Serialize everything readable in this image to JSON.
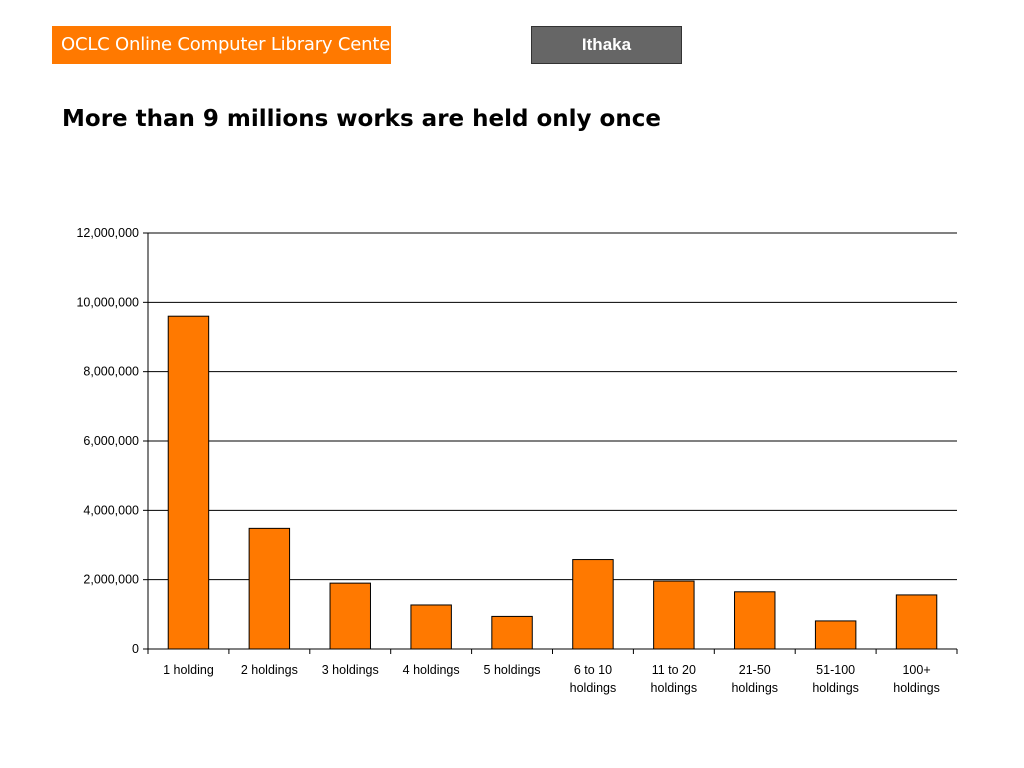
{
  "header": {
    "logo_text": "OCLC Online Computer Library Center",
    "badge_label": "Ithaka"
  },
  "slide": {
    "title": "More than 9 millions works are held only once"
  },
  "colors": {
    "brand_orange": "#FF7900",
    "badge_gray": "#666666",
    "bar_fill": "#FF7900",
    "bar_stroke": "#000000"
  },
  "chart_data": {
    "type": "bar",
    "title": "",
    "xlabel": "",
    "ylabel": "",
    "categories": [
      [
        "1 holding"
      ],
      [
        "2 holdings"
      ],
      [
        "3 holdings"
      ],
      [
        "4 holdings"
      ],
      [
        "5 holdings"
      ],
      [
        "6 to 10",
        "holdings"
      ],
      [
        "11 to 20",
        "holdings"
      ],
      [
        "21-50",
        "holdings"
      ],
      [
        "51-100",
        "holdings"
      ],
      [
        "100+",
        "holdings"
      ]
    ],
    "values": [
      9600000,
      3480000,
      1900000,
      1270000,
      940000,
      2580000,
      1960000,
      1650000,
      810000,
      1560000
    ],
    "ylim": [
      0,
      12000000
    ],
    "yticks": [
      0,
      2000000,
      4000000,
      6000000,
      8000000,
      10000000,
      12000000
    ],
    "ytick_labels": [
      "0",
      "2,000,000",
      "4,000,000",
      "6,000,000",
      "8,000,000",
      "10,000,000",
      "12,000,000"
    ],
    "grid": true,
    "legend": "none"
  }
}
